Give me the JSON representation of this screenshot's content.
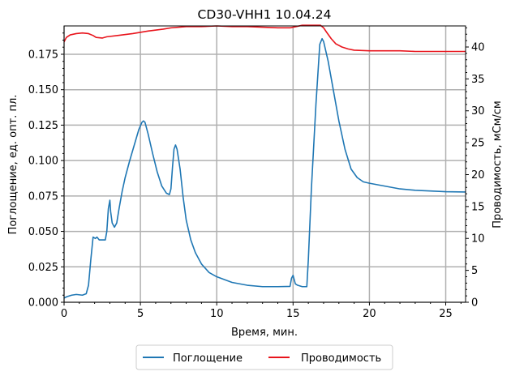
{
  "chart_data": {
    "type": "line",
    "title": "CD30-VHH1 10.04.24",
    "xlabel": "Время, мин.",
    "ylabel_left": "Поглощение, ед. опт. пл.",
    "ylabel_right": "Проводимость, мСм/см",
    "xlim": [
      0,
      26.3
    ],
    "ylim_left": [
      0,
      0.195
    ],
    "ylim_right": [
      0,
      43.3
    ],
    "grid": true,
    "legend_position": "bottom-center",
    "x_ticks": [
      "0",
      "5",
      "10",
      "15",
      "20",
      "25"
    ],
    "y_left_ticks": [
      "0.000",
      "0.025",
      "0.050",
      "0.075",
      "0.100",
      "0.125",
      "0.150",
      "0.175"
    ],
    "y_right_ticks": [
      "0",
      "5",
      "10",
      "15",
      "20",
      "25",
      "30",
      "35",
      "40"
    ],
    "series": [
      {
        "name": "Поглощение",
        "axis": "left",
        "color": "#1f77b4",
        "points": [
          [
            0,
            0.003
          ],
          [
            0.2,
            0.004
          ],
          [
            0.5,
            0.005
          ],
          [
            0.8,
            0.0055
          ],
          [
            1.2,
            0.005
          ],
          [
            1.45,
            0.006
          ],
          [
            1.6,
            0.012
          ],
          [
            1.75,
            0.03
          ],
          [
            1.9,
            0.046
          ],
          [
            2.05,
            0.045
          ],
          [
            2.15,
            0.046
          ],
          [
            2.3,
            0.044
          ],
          [
            2.6,
            0.044
          ],
          [
            2.7,
            0.044
          ],
          [
            2.8,
            0.05
          ],
          [
            2.9,
            0.066
          ],
          [
            3.0,
            0.072
          ],
          [
            3.05,
            0.064
          ],
          [
            3.15,
            0.056
          ],
          [
            3.3,
            0.053
          ],
          [
            3.45,
            0.056
          ],
          [
            3.6,
            0.066
          ],
          [
            3.8,
            0.078
          ],
          [
            4.0,
            0.088
          ],
          [
            4.3,
            0.1
          ],
          [
            4.6,
            0.111
          ],
          [
            4.9,
            0.122
          ],
          [
            5.1,
            0.127
          ],
          [
            5.2,
            0.128
          ],
          [
            5.3,
            0.127
          ],
          [
            5.5,
            0.119
          ],
          [
            5.8,
            0.105
          ],
          [
            6.1,
            0.092
          ],
          [
            6.4,
            0.082
          ],
          [
            6.7,
            0.077
          ],
          [
            6.9,
            0.076
          ],
          [
            7.0,
            0.08
          ],
          [
            7.1,
            0.095
          ],
          [
            7.2,
            0.108
          ],
          [
            7.3,
            0.111
          ],
          [
            7.4,
            0.108
          ],
          [
            7.6,
            0.094
          ],
          [
            7.8,
            0.074
          ],
          [
            8.0,
            0.058
          ],
          [
            8.3,
            0.044
          ],
          [
            8.6,
            0.035
          ],
          [
            9.0,
            0.027
          ],
          [
            9.5,
            0.021
          ],
          [
            10.0,
            0.018
          ],
          [
            10.5,
            0.016
          ],
          [
            11.0,
            0.014
          ],
          [
            12.0,
            0.012
          ],
          [
            13.0,
            0.011
          ],
          [
            14.0,
            0.011
          ],
          [
            14.8,
            0.0112
          ],
          [
            14.9,
            0.017
          ],
          [
            15.0,
            0.019
          ],
          [
            15.05,
            0.017
          ],
          [
            15.15,
            0.013
          ],
          [
            15.3,
            0.012
          ],
          [
            15.6,
            0.011
          ],
          [
            15.9,
            0.011
          ],
          [
            16.0,
            0.03
          ],
          [
            16.2,
            0.08
          ],
          [
            16.5,
            0.14
          ],
          [
            16.75,
            0.182
          ],
          [
            16.9,
            0.186
          ],
          [
            17.0,
            0.184
          ],
          [
            17.3,
            0.17
          ],
          [
            17.6,
            0.152
          ],
          [
            18.0,
            0.128
          ],
          [
            18.4,
            0.108
          ],
          [
            18.8,
            0.094
          ],
          [
            19.2,
            0.088
          ],
          [
            19.6,
            0.085
          ],
          [
            20.0,
            0.084
          ],
          [
            20.5,
            0.083
          ],
          [
            21.0,
            0.082
          ],
          [
            22.0,
            0.08
          ],
          [
            23.0,
            0.079
          ],
          [
            24.0,
            0.0785
          ],
          [
            25.0,
            0.078
          ],
          [
            26.3,
            0.0778
          ]
        ]
      },
      {
        "name": "Проводимость",
        "axis": "right",
        "color": "#e8141c",
        "points": [
          [
            0,
            40.8
          ],
          [
            0.15,
            41.5
          ],
          [
            0.4,
            41.9
          ],
          [
            0.8,
            42.1
          ],
          [
            1.2,
            42.2
          ],
          [
            1.6,
            42.1
          ],
          [
            1.9,
            41.8
          ],
          [
            2.1,
            41.5
          ],
          [
            2.5,
            41.4
          ],
          [
            2.8,
            41.6
          ],
          [
            3.5,
            41.8
          ],
          [
            4.5,
            42.1
          ],
          [
            5.5,
            42.5
          ],
          [
            6.5,
            42.8
          ],
          [
            7.0,
            43.0
          ],
          [
            8.0,
            43.2
          ],
          [
            9.0,
            43.2
          ],
          [
            10.0,
            43.3
          ],
          [
            11.0,
            43.2
          ],
          [
            12.0,
            43.2
          ],
          [
            13.0,
            43.1
          ],
          [
            14.0,
            43.0
          ],
          [
            14.8,
            43.0
          ],
          [
            15.2,
            43.2
          ],
          [
            15.6,
            43.4
          ],
          [
            16.2,
            43.4
          ],
          [
            16.8,
            43.4
          ],
          [
            17.0,
            43.0
          ],
          [
            17.2,
            42.3
          ],
          [
            17.5,
            41.3
          ],
          [
            17.8,
            40.5
          ],
          [
            18.2,
            40.0
          ],
          [
            18.6,
            39.7
          ],
          [
            19.0,
            39.5
          ],
          [
            20.0,
            39.4
          ],
          [
            21.0,
            39.4
          ],
          [
            22.0,
            39.4
          ],
          [
            23.0,
            39.3
          ],
          [
            24.0,
            39.3
          ],
          [
            25.0,
            39.3
          ],
          [
            26.3,
            39.3
          ]
        ]
      }
    ]
  }
}
